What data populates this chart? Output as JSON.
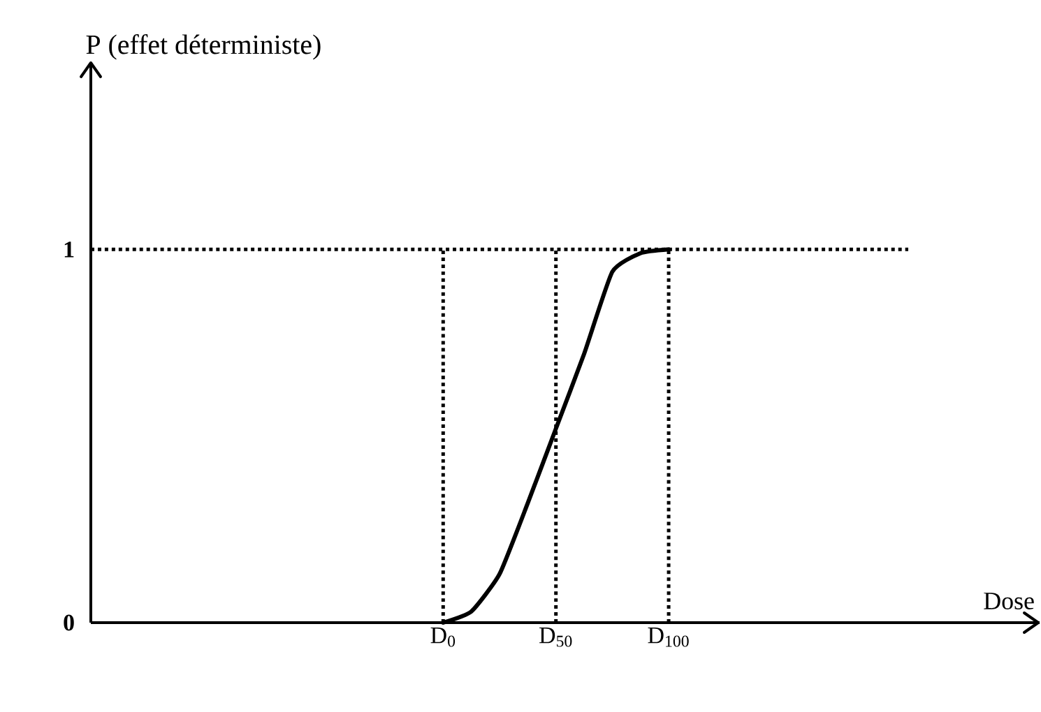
{
  "chart_data": {
    "type": "line",
    "xlabel": "Dose",
    "annotations": [
      "P (effet déterministe)"
    ],
    "categories": [
      null,
      null,
      null,
      null,
      null,
      null,
      null,
      null,
      null,
      null,
      null,
      null,
      "D$_{0}$",
      null,
      null,
      null,
      "D$_{50}$",
      null,
      null,
      null,
      "D$_{100}$",
      null,
      null,
      null,
      null,
      null,
      null,
      null,
      null
    ],
    "ylim": [
      0,
      1.5
    ],
    "yticks": [
      0,
      1
    ],
    "marker": "none",
    "series": [
      {
        "color": "#000000",
        "line_style": "solid",
        "values": [
          null,
          null,
          null,
          null,
          null,
          null,
          null,
          null,
          null,
          null,
          null,
          null,
          0,
          0.03,
          0.13,
          0.32,
          0.52,
          0.72,
          0.94,
          0.99,
          1,
          null,
          null,
          null,
          null,
          null,
          null,
          null,
          null
        ]
      }
    ],
    "ref_lines": [
      {
        "axis": "y",
        "value": 1,
        "color": "#000000",
        "line_style": "dotted"
      },
      {
        "axis": "x",
        "value": "D$_{0}$",
        "color": "#000000",
        "line_style": "dotted"
      },
      {
        "axis": "x",
        "value": "D$_{50}$",
        "color": "#000000",
        "line_style": "dotted"
      },
      {
        "axis": "x",
        "value": "D$_{100}$",
        "color": "#000000",
        "line_style": "dotted"
      }
    ]
  }
}
